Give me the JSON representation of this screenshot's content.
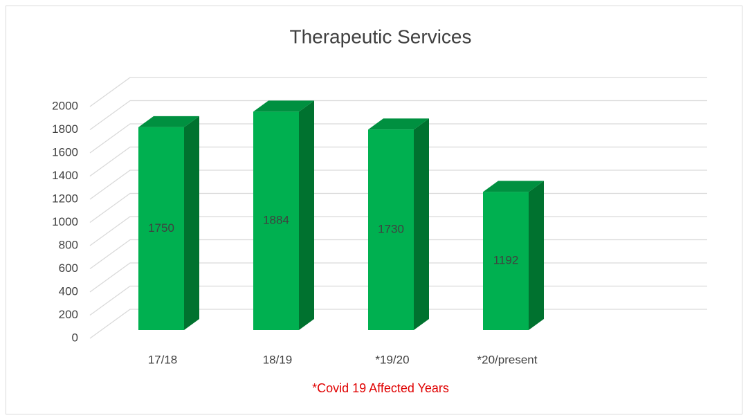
{
  "chart_data": {
    "type": "bar3d",
    "title": "Therapeutic Services",
    "categories": [
      "17/18",
      "18/19",
      "*19/20",
      "*20/present"
    ],
    "values": [
      1750,
      1884,
      1730,
      1192
    ],
    "color": "#00b050",
    "ylim": [
      0,
      2000
    ],
    "yticks": [
      0,
      200,
      400,
      600,
      800,
      1000,
      1200,
      1400,
      1600,
      1800,
      2000
    ],
    "grid": true,
    "annotation": "*Covid 19 Affected Years"
  }
}
